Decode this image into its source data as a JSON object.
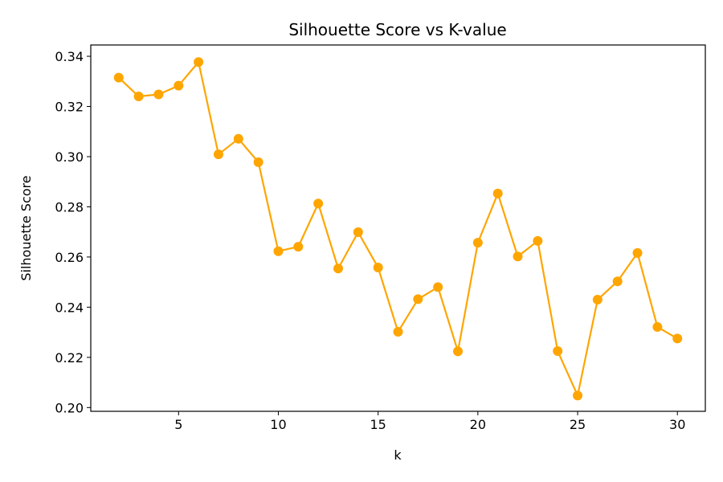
{
  "chart_data": {
    "type": "line",
    "title": "Silhouette Score vs K-value",
    "xlabel": "k",
    "ylabel": "Silhouette Score",
    "xlim": [
      0.6,
      31.4
    ],
    "ylim": [
      0.1985,
      0.3445
    ],
    "xticks": [
      5,
      10,
      15,
      20,
      25,
      30
    ],
    "xtick_labels": [
      "5",
      "10",
      "15",
      "20",
      "25",
      "30"
    ],
    "yticks": [
      0.2,
      0.22,
      0.24,
      0.26,
      0.28,
      0.3,
      0.32,
      0.34
    ],
    "ytick_labels": [
      "0.20",
      "0.22",
      "0.24",
      "0.26",
      "0.28",
      "0.30",
      "0.32",
      "0.34"
    ],
    "grid": false,
    "legend": false,
    "color": "#FFA500",
    "series": [
      {
        "x": [
          2,
          3,
          4,
          5,
          6,
          7,
          8,
          9,
          10,
          11,
          12,
          13,
          14,
          15,
          16,
          17,
          18,
          19,
          20,
          21,
          22,
          23,
          24,
          25,
          26,
          27,
          28,
          29,
          30
        ],
        "values": [
          0.3315,
          0.324,
          0.3248,
          0.3283,
          0.3377,
          0.3009,
          0.3071,
          0.2978,
          0.2623,
          0.2641,
          0.2813,
          0.2554,
          0.2699,
          0.2558,
          0.2302,
          0.2432,
          0.248,
          0.2224,
          0.2657,
          0.2853,
          0.2602,
          0.2664,
          0.2225,
          0.2048,
          0.243,
          0.2503,
          0.2616,
          0.2321,
          0.2275
        ]
      }
    ]
  }
}
